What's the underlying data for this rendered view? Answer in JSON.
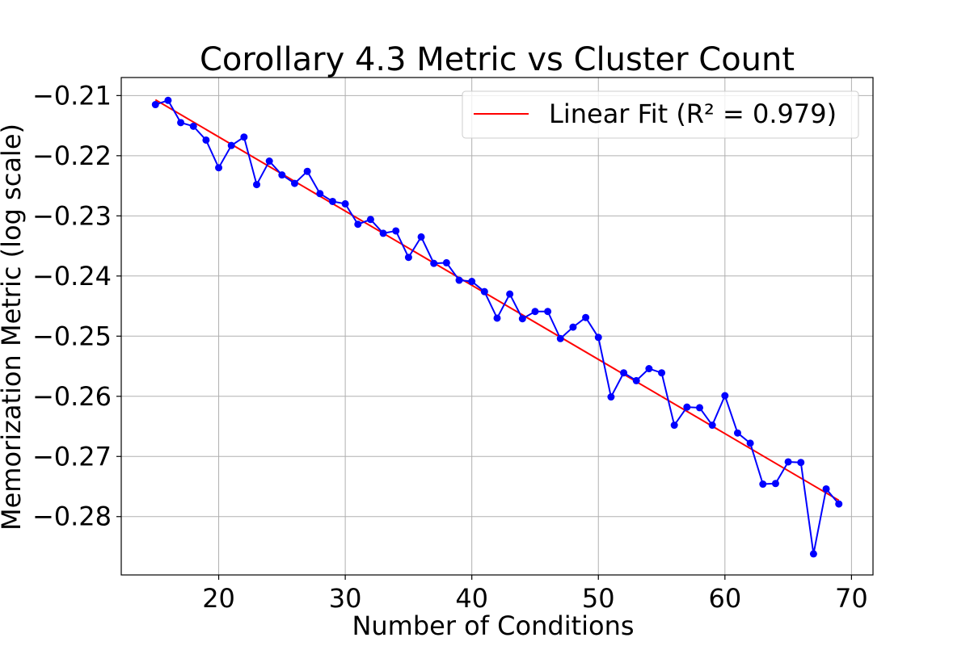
{
  "chart_data": {
    "type": "line",
    "title": "Corollary 4.3 Metric vs Cluster Count",
    "xlabel": "Number of Conditions",
    "ylabel": "Memorization Metric (log scale)",
    "xlim": [
      12.3,
      71.7
    ],
    "ylim": [
      -0.2897,
      -0.207
    ],
    "xticks": [
      20,
      30,
      40,
      50,
      60,
      70
    ],
    "yticks": [
      -0.21,
      -0.22,
      -0.23,
      -0.24,
      -0.25,
      -0.26,
      -0.27,
      -0.28
    ],
    "ytick_labels": [
      "−0.21",
      "−0.22",
      "−0.23",
      "−0.24",
      "−0.25",
      "−0.26",
      "−0.27",
      "−0.28"
    ],
    "grid": true,
    "legend_position": "upper-right",
    "colors": {
      "data": "#0000ff",
      "fit": "#ff0000",
      "grid": "#b0b0b0"
    },
    "series": [
      {
        "name": "data",
        "x": [
          15,
          16,
          17,
          18,
          19,
          20,
          21,
          22,
          23,
          24,
          25,
          26,
          27,
          28,
          29,
          30,
          31,
          32,
          33,
          34,
          35,
          36,
          37,
          38,
          39,
          40,
          41,
          42,
          43,
          44,
          45,
          46,
          47,
          48,
          49,
          50,
          51,
          52,
          53,
          54,
          55,
          56,
          57,
          58,
          59,
          60,
          61,
          62,
          63,
          64,
          65,
          66,
          67,
          68,
          69
        ],
        "y": [
          -0.2115,
          -0.2108,
          -0.2145,
          -0.2151,
          -0.2174,
          -0.222,
          -0.2183,
          -0.2169,
          -0.2248,
          -0.2209,
          -0.2232,
          -0.2246,
          -0.2226,
          -0.2263,
          -0.2276,
          -0.228,
          -0.2314,
          -0.2306,
          -0.2329,
          -0.2325,
          -0.2369,
          -0.2335,
          -0.2379,
          -0.2378,
          -0.2407,
          -0.2409,
          -0.2426,
          -0.247,
          -0.243,
          -0.2471,
          -0.2459,
          -0.2459,
          -0.2504,
          -0.2485,
          -0.2469,
          -0.2502,
          -0.2601,
          -0.2561,
          -0.2574,
          -0.2554,
          -0.2561,
          -0.2648,
          -0.2618,
          -0.2619,
          -0.2648,
          -0.2599,
          -0.2661,
          -0.2678,
          -0.2746,
          -0.2745,
          -0.2709,
          -0.271,
          -0.2862,
          -0.2754,
          -0.2779
        ]
      },
      {
        "name": "Linear Fit (R² = 0.979)",
        "x": [
          15,
          69
        ],
        "y": [
          -0.2107,
          -0.2773
        ]
      }
    ]
  }
}
